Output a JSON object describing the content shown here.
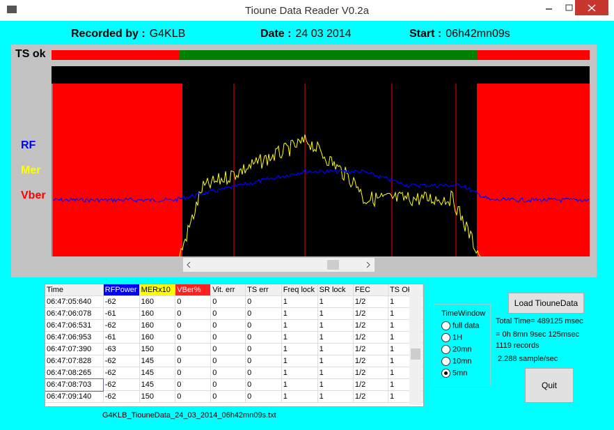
{
  "window": {
    "title": "Tioune Data Reader V0.2a"
  },
  "header": {
    "recorded_label": "Recorded by :",
    "recorded_value": "G4KLB",
    "date_label": "Date :",
    "date_value": "24 03 2014",
    "start_label": "Start :",
    "start_value": "06h42mn09s"
  },
  "plot": {
    "ts_label": "TS ok",
    "legend": [
      "RF",
      "Mer",
      "Vber"
    ]
  },
  "table": {
    "columns": [
      "Time",
      "RFPower",
      "MERx10",
      "VBer%",
      "Vit. err",
      "TS err",
      "Freq lock",
      "SR lock",
      "FEC",
      "TS OK"
    ],
    "rows": [
      [
        "06:47:05:640",
        "-62",
        "160",
        "0",
        "0",
        "0",
        "1",
        "1",
        "1/2",
        "1"
      ],
      [
        "06:47:06:078",
        "-61",
        "160",
        "0",
        "0",
        "0",
        "1",
        "1",
        "1/2",
        "1"
      ],
      [
        "06:47:06:531",
        "-62",
        "160",
        "0",
        "0",
        "0",
        "1",
        "1",
        "1/2",
        "1"
      ],
      [
        "06:47:06:953",
        "-61",
        "160",
        "0",
        "0",
        "0",
        "1",
        "1",
        "1/2",
        "1"
      ],
      [
        "06:47:07:390",
        "-63",
        "150",
        "0",
        "0",
        "0",
        "1",
        "1",
        "1/2",
        "1"
      ],
      [
        "06:47:07:828",
        "-62",
        "145",
        "0",
        "0",
        "0",
        "1",
        "1",
        "1/2",
        "1"
      ],
      [
        "06:47:08:265",
        "-62",
        "145",
        "0",
        "0",
        "0",
        "1",
        "1",
        "1/2",
        "1"
      ],
      [
        "06:47:08:703",
        "-62",
        "145",
        "0",
        "0",
        "0",
        "1",
        "1",
        "1/2",
        "1"
      ],
      [
        "06:47:09:140",
        "-62",
        "150",
        "0",
        "0",
        "0",
        "1",
        "1",
        "1/2",
        "1"
      ]
    ]
  },
  "time_window": {
    "title": "TimeWindow",
    "options": [
      {
        "label": "full data",
        "checked": false
      },
      {
        "label": "1H",
        "checked": false
      },
      {
        "label": "20mn",
        "checked": false
      },
      {
        "label": "10mn",
        "checked": false
      },
      {
        "label": "5mn",
        "checked": true
      }
    ]
  },
  "buttons": {
    "load": "Load TiouneData",
    "quit": "Quit"
  },
  "stats": [
    "Total Time= 489125 msec",
    "= 0h 8mn 9sec 125msec",
    "1119 records",
    "2.288 sample/sec"
  ],
  "filename": "G4KLB_TiouneData_24_03_2014_06h42mn09s.txt"
}
